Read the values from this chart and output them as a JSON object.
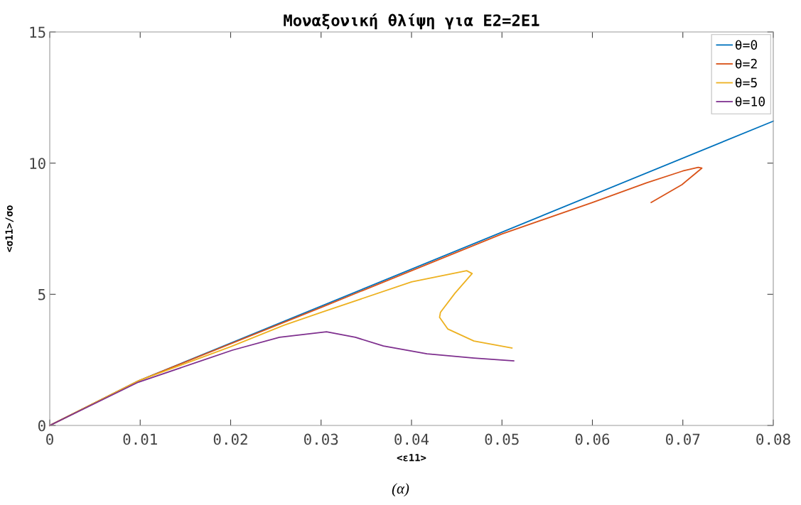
{
  "chart_data": {
    "type": "line",
    "title": "Μοναξονική θλίψη για E2=2E1",
    "xlabel": "<ε11>",
    "ylabel": "<σ11>/σο",
    "annotations": [
      "(α)"
    ],
    "xlim": [
      0,
      0.08
    ],
    "ylim": [
      0,
      15
    ],
    "xticks": [
      0,
      0.01,
      0.02,
      0.03,
      0.04,
      0.05,
      0.06,
      0.07,
      0.08
    ],
    "yticks": [
      0,
      5,
      10,
      15
    ],
    "grid": false,
    "legend": "top right",
    "marker": "none",
    "line_style": "solid",
    "series": [
      {
        "name": "θ=0",
        "color": "#0072bd",
        "x": [
          0,
          0.0098,
          0.08
        ],
        "values": [
          0,
          1.7,
          11.6
        ]
      },
      {
        "name": "θ=2",
        "color": "#d95319",
        "x": [
          0,
          0.0098,
          0.03,
          0.05,
          0.06,
          0.066,
          0.07,
          0.0717,
          0.0721,
          0.0712,
          0.0699,
          0.0665
        ],
        "values": [
          0,
          1.7,
          4.5,
          7.3,
          8.5,
          9.25,
          9.7,
          9.84,
          9.81,
          9.55,
          9.18,
          8.5
        ]
      },
      {
        "name": "θ=5",
        "color": "#edb120",
        "x": [
          0,
          0.0098,
          0.02,
          0.0259,
          0.03,
          0.04,
          0.0461,
          0.0467,
          0.0448,
          0.0432,
          0.0431,
          0.044,
          0.0469,
          0.0511
        ],
        "values": [
          0,
          1.7,
          3.0,
          3.82,
          4.31,
          5.47,
          5.9,
          5.79,
          5.04,
          4.31,
          4.12,
          3.68,
          3.22,
          2.95
        ]
      },
      {
        "name": "θ=10",
        "color": "#7e2f8e",
        "x": [
          0,
          0.0098,
          0.0202,
          0.0254,
          0.0306,
          0.0338,
          0.0369,
          0.0417,
          0.0469,
          0.0513
        ],
        "values": [
          0,
          1.65,
          2.87,
          3.36,
          3.57,
          3.36,
          3.03,
          2.73,
          2.57,
          2.46
        ]
      }
    ]
  }
}
